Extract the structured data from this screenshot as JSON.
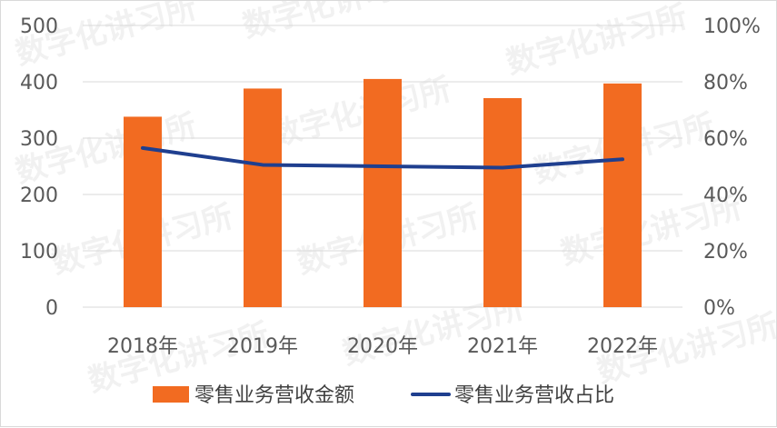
{
  "watermark": "数字化讲习所",
  "colors": {
    "bar": "#F26B21",
    "line": "#1F3F8F",
    "grid": "#d9d9d9",
    "text": "#595959"
  },
  "chart_data": {
    "type": "bar",
    "categories": [
      "2018年",
      "2019年",
      "2020年",
      "2021年",
      "2022年"
    ],
    "series": [
      {
        "name": "零售业务营收金额",
        "type": "bar",
        "axis": "left",
        "values": [
          338,
          388,
          405,
          371,
          397
        ]
      },
      {
        "name": "零售业务营收占比",
        "type": "line",
        "axis": "right",
        "values": [
          0.565,
          0.505,
          0.5,
          0.495,
          0.525
        ]
      }
    ],
    "y_left": {
      "lim": [
        0,
        500
      ],
      "ticks": [
        "0",
        "100",
        "200",
        "300",
        "400",
        "500"
      ]
    },
    "y_right": {
      "lim": [
        0,
        1
      ],
      "ticks": [
        "0%",
        "20%",
        "40%",
        "60%",
        "80%",
        "100%"
      ]
    },
    "grid": true,
    "legend": "bottom"
  }
}
